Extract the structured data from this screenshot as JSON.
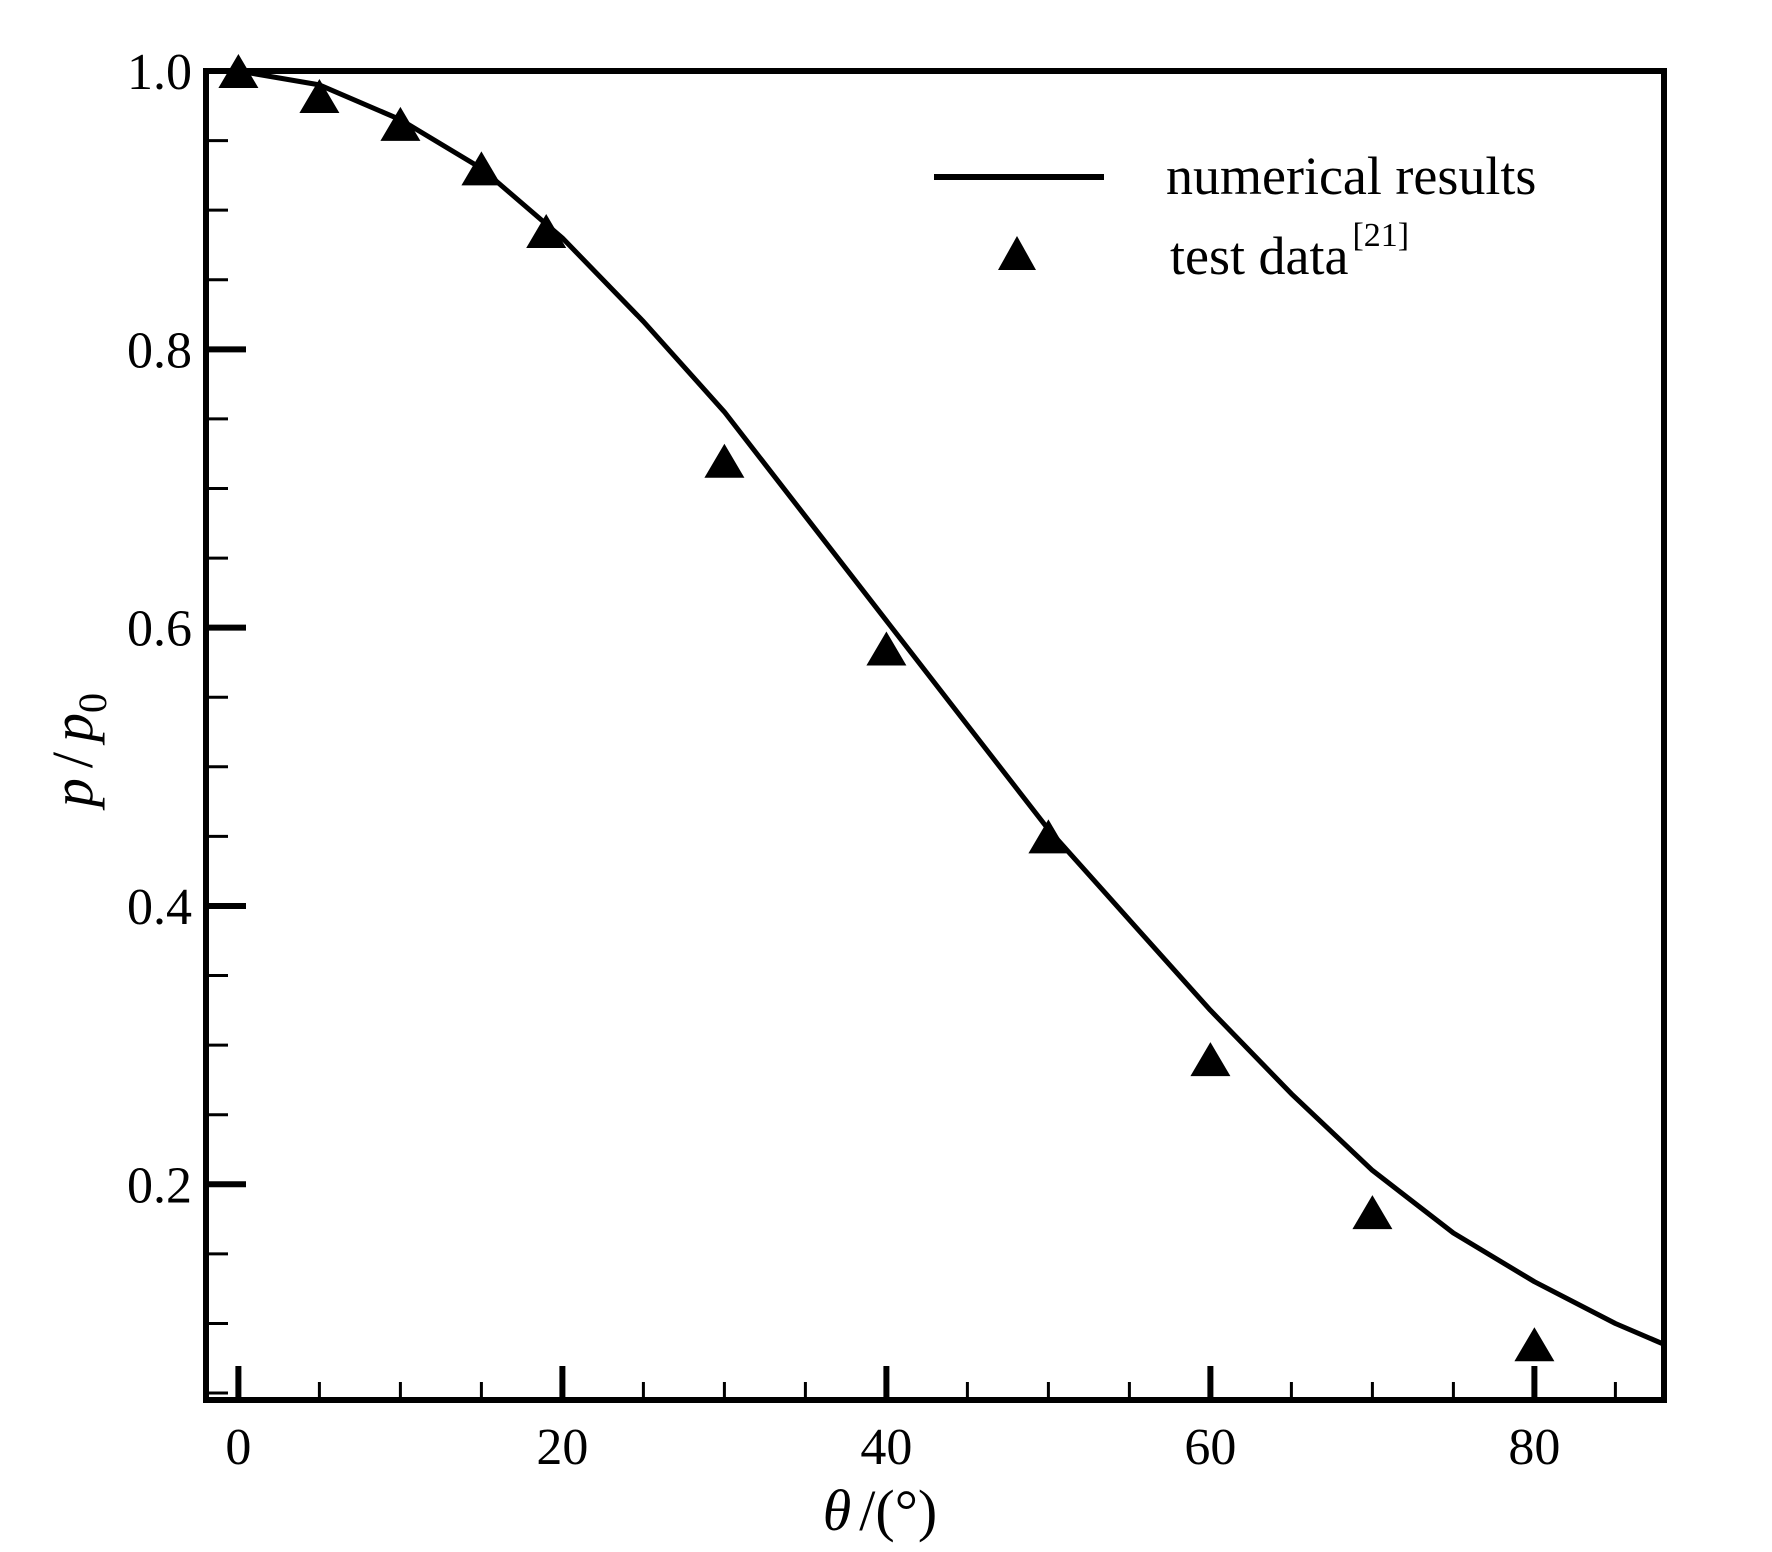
{
  "chart_data": {
    "type": "line",
    "title": "",
    "xlabel": {
      "symbol": "θ",
      "unit": "/(°)"
    },
    "ylabel": {
      "numerator": "p",
      "separator": "/",
      "denominator": "p",
      "subscript": "0"
    },
    "xlim": [
      -2,
      88
    ],
    "ylim": [
      0.045,
      1.0
    ],
    "x_ticks": [
      0,
      20,
      40,
      60,
      80
    ],
    "x_minor_step": 5,
    "y_ticks": [
      0.2,
      0.4,
      0.6,
      0.8,
      1.0
    ],
    "y_tick_labels": [
      "0.2",
      "0.4",
      "0.6",
      "0.8",
      "1.0"
    ],
    "y_minor_step": 0.05,
    "x_tick_labels": [
      "0",
      "20",
      "40",
      "60",
      "80"
    ],
    "grid": false,
    "legend_position": "top-right",
    "series": [
      {
        "name": "numerical results",
        "kind": "line",
        "x": [
          0,
          5,
          10,
          15,
          20,
          25,
          30,
          35,
          40,
          45,
          50,
          55,
          60,
          65,
          70,
          75,
          80,
          85,
          88
        ],
        "y": [
          1.0,
          0.99,
          0.965,
          0.93,
          0.88,
          0.82,
          0.755,
          0.68,
          0.605,
          0.53,
          0.455,
          0.39,
          0.325,
          0.265,
          0.21,
          0.165,
          0.13,
          0.1,
          0.085
        ]
      },
      {
        "name": "test data",
        "name_superscript": "[21]",
        "kind": "marker",
        "marker": "triangle",
        "x": [
          0,
          5,
          10,
          15,
          19,
          30,
          40,
          50,
          60,
          70,
          80
        ],
        "y": [
          1.0,
          0.982,
          0.962,
          0.93,
          0.885,
          0.72,
          0.585,
          0.45,
          0.29,
          0.18,
          0.085
        ]
      }
    ]
  }
}
